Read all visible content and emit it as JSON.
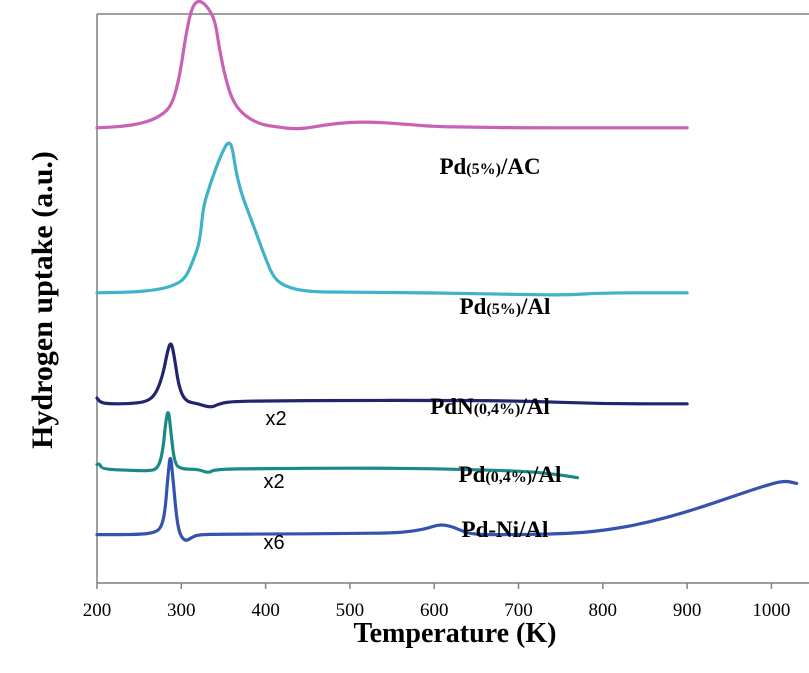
{
  "chart_data": {
    "type": "line",
    "xlabel": "Temperature (K)",
    "ylabel": "Hydrogen uptake (a.u.)",
    "xlim": [
      200,
      1050
    ],
    "xticks": [
      200,
      300,
      400,
      500,
      600,
      700,
      800,
      900,
      1000
    ],
    "yticks": [],
    "grid": false,
    "legend": "inline labels",
    "series": [
      {
        "key": "pdac",
        "name_main": "Pd",
        "name_sub": "(5%)",
        "name_tail": "/AC",
        "multiplier": "",
        "color": "#c962b4",
        "baseline": 0.8,
        "points": [
          [
            200,
            0
          ],
          [
            230,
            0.002
          ],
          [
            260,
            0.01
          ],
          [
            280,
            0.025
          ],
          [
            290,
            0.045
          ],
          [
            298,
            0.09
          ],
          [
            305,
            0.16
          ],
          [
            312,
            0.21
          ],
          [
            320,
            0.225
          ],
          [
            330,
            0.215
          ],
          [
            340,
            0.19
          ],
          [
            345,
            0.14
          ],
          [
            352,
            0.09
          ],
          [
            360,
            0.05
          ],
          [
            372,
            0.025
          ],
          [
            390,
            0.008
          ],
          [
            410,
            0.002
          ],
          [
            440,
            -0.003
          ],
          [
            470,
            0.005
          ],
          [
            500,
            0.01
          ],
          [
            530,
            0.01
          ],
          [
            560,
            0.007
          ],
          [
            600,
            0.002
          ],
          [
            650,
            0.001
          ],
          [
            700,
            0.0
          ],
          [
            800,
            0.0
          ],
          [
            900,
            0.0
          ],
          [
            1050,
            0.0
          ]
        ]
      },
      {
        "key": "pdal",
        "name_main": "Pd",
        "name_sub": "(5%)",
        "name_tail": "/Al",
        "multiplier": "",
        "color": "#3eb3c9",
        "baseline": 0.51,
        "points": [
          [
            200,
            0
          ],
          [
            240,
            0.001
          ],
          [
            270,
            0.005
          ],
          [
            290,
            0.012
          ],
          [
            305,
            0.025
          ],
          [
            315,
            0.06
          ],
          [
            322,
            0.09
          ],
          [
            326,
            0.15
          ],
          [
            332,
            0.18
          ],
          [
            340,
            0.215
          ],
          [
            348,
            0.245
          ],
          [
            355,
            0.265
          ],
          [
            360,
            0.26
          ],
          [
            364,
            0.22
          ],
          [
            370,
            0.18
          ],
          [
            380,
            0.14
          ],
          [
            390,
            0.1
          ],
          [
            400,
            0.06
          ],
          [
            410,
            0.025
          ],
          [
            425,
            0.01
          ],
          [
            450,
            0.002
          ],
          [
            500,
            0.001
          ],
          [
            600,
            0.0
          ],
          [
            700,
            -0.003
          ],
          [
            760,
            -0.004
          ],
          [
            800,
            0.0
          ],
          [
            900,
            0.0
          ],
          [
            1050,
            0.0
          ]
        ]
      },
      {
        "key": "pdn",
        "name_main": "PdN",
        "name_sub": "(0,4%)",
        "name_tail": "/Al",
        "multiplier": "x2",
        "color": "#23246e",
        "baseline": 0.315,
        "points": [
          [
            200,
            0.01
          ],
          [
            203,
            0.004
          ],
          [
            210,
            0.0
          ],
          [
            240,
            0.0
          ],
          [
            260,
            0.004
          ],
          [
            270,
            0.018
          ],
          [
            278,
            0.05
          ],
          [
            284,
            0.095
          ],
          [
            288,
            0.11
          ],
          [
            292,
            0.08
          ],
          [
            297,
            0.03
          ],
          [
            305,
            0.004
          ],
          [
            320,
            0.0
          ],
          [
            335,
            -0.007
          ],
          [
            345,
            0.0
          ],
          [
            360,
            0.004
          ],
          [
            400,
            0.005
          ],
          [
            500,
            0.006
          ],
          [
            600,
            0.006
          ],
          [
            700,
            0.005
          ],
          [
            800,
            0.0
          ],
          [
            900,
            0.0
          ],
          [
            1050,
            0.0
          ]
        ]
      },
      {
        "key": "pd04",
        "name_main": "Pd",
        "name_sub": "(0,4%)",
        "name_tail": "/Al",
        "multiplier": "x2",
        "color": "#198a86",
        "baseline": 0.2,
        "points": [
          [
            200,
            0.008
          ],
          [
            203,
            0.01
          ],
          [
            206,
            0.0
          ],
          [
            240,
            -0.002
          ],
          [
            260,
            -0.003
          ],
          [
            272,
            0.0
          ],
          [
            278,
            0.03
          ],
          [
            282,
            0.09
          ],
          [
            285,
            0.105
          ],
          [
            288,
            0.06
          ],
          [
            292,
            0.01
          ],
          [
            300,
            0.0
          ],
          [
            320,
            0.0
          ],
          [
            332,
            -0.007
          ],
          [
            340,
            0.0
          ],
          [
            400,
            0.001
          ],
          [
            500,
            0.002
          ],
          [
            600,
            0.001
          ],
          [
            700,
            -0.003
          ],
          [
            740,
            -0.008
          ],
          [
            770,
            -0.015
          ]
        ]
      },
      {
        "key": "pdni",
        "name_main": "Pd-Ni/Al",
        "name_sub": "",
        "name_tail": "",
        "multiplier": "x6",
        "color": "#3453b0",
        "baseline": 0.085,
        "points": [
          [
            200,
            0.0
          ],
          [
            250,
            0.0
          ],
          [
            270,
            0.004
          ],
          [
            277,
            0.015
          ],
          [
            281,
            0.045
          ],
          [
            284,
            0.1
          ],
          [
            287,
            0.145
          ],
          [
            290,
            0.1
          ],
          [
            294,
            0.035
          ],
          [
            298,
            0.0
          ],
          [
            305,
            -0.012
          ],
          [
            312,
            -0.005
          ],
          [
            320,
            0.0
          ],
          [
            350,
            0.001
          ],
          [
            400,
            0.001
          ],
          [
            500,
            0.002
          ],
          [
            560,
            0.003
          ],
          [
            590,
            0.01
          ],
          [
            605,
            0.018
          ],
          [
            620,
            0.015
          ],
          [
            640,
            0.002
          ],
          [
            660,
            0.0
          ],
          [
            700,
            0.0
          ],
          [
            760,
            0.002
          ],
          [
            800,
            0.007
          ],
          [
            850,
            0.02
          ],
          [
            900,
            0.04
          ],
          [
            950,
            0.065
          ],
          [
            990,
            0.085
          ],
          [
            1015,
            0.095
          ],
          [
            1030,
            0.09
          ],
          [
            1050,
            0.08
          ]
        ]
      }
    ]
  }
}
